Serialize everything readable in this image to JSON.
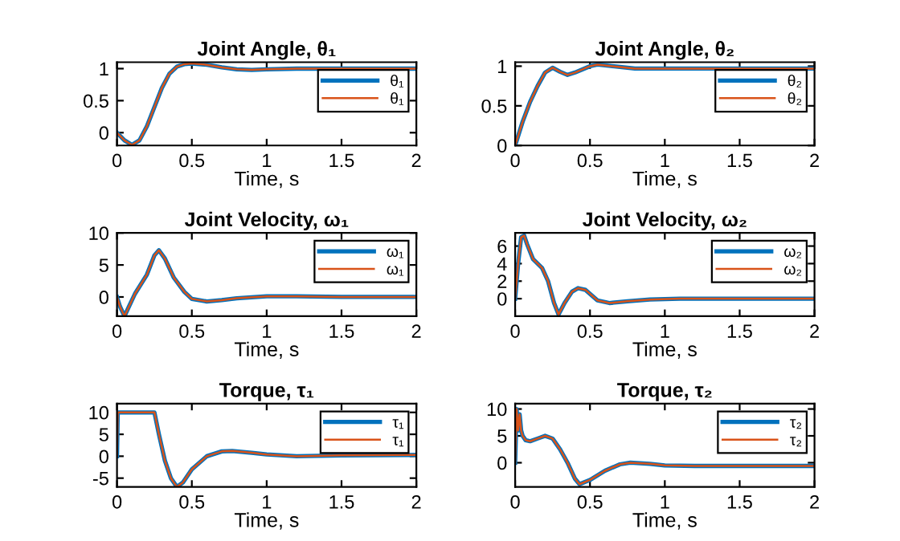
{
  "chart_data": [
    {
      "type": "line",
      "title": "Joint Angle, θ₁",
      "xlabel": "Time, s",
      "xlim": [
        0,
        2
      ],
      "xticks": [
        0,
        0.5,
        1,
        1.5,
        2
      ],
      "ylim": [
        -0.2,
        1.1
      ],
      "yticks": [
        0,
        0.5,
        1
      ],
      "legend": "top right",
      "x": [
        0,
        0.05,
        0.1,
        0.15,
        0.2,
        0.25,
        0.3,
        0.35,
        0.4,
        0.45,
        0.5,
        0.6,
        0.7,
        0.8,
        0.9,
        1.0,
        1.2,
        1.5,
        2
      ],
      "series": [
        {
          "name": "θ₁",
          "color": "#0072bd",
          "values": [
            0,
            -0.12,
            -0.19,
            -0.12,
            0.1,
            0.4,
            0.7,
            0.92,
            1.03,
            1.07,
            1.08,
            1.06,
            1.02,
            0.99,
            0.98,
            0.99,
            1.0,
            1.0,
            1.0
          ]
        },
        {
          "name": "θ₁",
          "color": "#d95319",
          "values": [
            0,
            -0.12,
            -0.19,
            -0.12,
            0.1,
            0.4,
            0.7,
            0.92,
            1.03,
            1.07,
            1.08,
            1.06,
            1.02,
            0.99,
            0.98,
            0.99,
            1.0,
            1.0,
            1.0
          ]
        }
      ]
    },
    {
      "type": "line",
      "title": "Joint Angle, θ₂",
      "xlabel": "Time, s",
      "xlim": [
        0,
        2
      ],
      "xticks": [
        0,
        0.5,
        1,
        1.5,
        2
      ],
      "ylim": [
        0,
        1.05
      ],
      "yticks": [
        0,
        0.5,
        1
      ],
      "legend": "top right",
      "x": [
        0,
        0.05,
        0.1,
        0.15,
        0.2,
        0.25,
        0.3,
        0.35,
        0.4,
        0.5,
        0.55,
        0.6,
        0.7,
        0.8,
        1.0,
        1.5,
        2
      ],
      "series": [
        {
          "name": "θ₂",
          "color": "#0072bd",
          "values": [
            0,
            0.3,
            0.55,
            0.75,
            0.92,
            0.98,
            0.93,
            0.89,
            0.92,
            1.0,
            1.02,
            1.01,
            0.99,
            0.97,
            0.97,
            0.97,
            0.97
          ]
        },
        {
          "name": "θ₂",
          "color": "#d95319",
          "values": [
            0,
            0.3,
            0.55,
            0.75,
            0.92,
            0.98,
            0.93,
            0.89,
            0.92,
            1.0,
            1.02,
            1.01,
            0.99,
            0.97,
            0.97,
            0.97,
            0.97
          ]
        }
      ]
    },
    {
      "type": "line",
      "title": "Joint Velocity, ω₁",
      "xlabel": "Time, s",
      "xlim": [
        0,
        2
      ],
      "xticks": [
        0,
        0.5,
        1,
        1.5,
        2
      ],
      "ylim": [
        -3,
        10
      ],
      "yticks": [
        0,
        5,
        10
      ],
      "legend": "top right",
      "x": [
        0,
        0.02,
        0.05,
        0.08,
        0.12,
        0.2,
        0.25,
        0.28,
        0.32,
        0.38,
        0.45,
        0.5,
        0.6,
        0.7,
        0.8,
        1.0,
        1.2,
        1.5,
        2
      ],
      "series": [
        {
          "name": "ω₁",
          "color": "#0072bd",
          "values": [
            0,
            -1.5,
            -3,
            -1.5,
            0.5,
            3.5,
            6.5,
            7.3,
            6,
            3,
            0.8,
            -0.3,
            -0.7,
            -0.5,
            -0.2,
            0.1,
            0.1,
            0,
            0
          ]
        },
        {
          "name": "ω₁",
          "color": "#d95319",
          "values": [
            0,
            -1.5,
            -3,
            -1.5,
            0.5,
            3.5,
            6.5,
            7.3,
            6,
            3,
            0.8,
            -0.3,
            -0.7,
            -0.5,
            -0.2,
            0.1,
            0.1,
            0,
            0
          ]
        }
      ]
    },
    {
      "type": "line",
      "title": "Joint Velocity, ω₂",
      "xlabel": "Time, s",
      "xlim": [
        0,
        2
      ],
      "xticks": [
        0,
        0.5,
        1,
        1.5,
        2
      ],
      "ylim": [
        -2,
        7.5
      ],
      "yticks": [
        0,
        2,
        4,
        6
      ],
      "legend": "top right",
      "x": [
        0,
        0.02,
        0.04,
        0.06,
        0.08,
        0.12,
        0.18,
        0.22,
        0.26,
        0.29,
        0.33,
        0.38,
        0.42,
        0.47,
        0.55,
        0.63,
        0.75,
        0.9,
        1.1,
        1.5,
        2
      ],
      "series": [
        {
          "name": "ω₂",
          "color": "#0072bd",
          "values": [
            0,
            4,
            7,
            7.2,
            6.2,
            4.5,
            3.5,
            2,
            -0.5,
            -1.8,
            -0.5,
            0.8,
            1.2,
            1,
            -0.2,
            -0.5,
            -0.3,
            -0.1,
            0,
            0,
            0
          ]
        },
        {
          "name": "ω₂",
          "color": "#d95319",
          "values": [
            0,
            4,
            7,
            7.2,
            6.2,
            4.5,
            3.5,
            2,
            -0.5,
            -1.8,
            -0.5,
            0.8,
            1.2,
            1,
            -0.2,
            -0.5,
            -0.3,
            -0.1,
            0,
            0,
            0
          ]
        }
      ]
    },
    {
      "type": "line",
      "title": "Torque, τ₁",
      "xlabel": "Time, s",
      "xlim": [
        0,
        2
      ],
      "xticks": [
        0,
        0.5,
        1,
        1.5,
        2
      ],
      "ylim": [
        -7,
        12
      ],
      "yticks": [
        -5,
        0,
        5,
        10
      ],
      "legend": "top right",
      "x": [
        0,
        0.005,
        0.25,
        0.28,
        0.32,
        0.36,
        0.4,
        0.44,
        0.5,
        0.6,
        0.7,
        0.77,
        0.9,
        1.0,
        1.2,
        1.5,
        2
      ],
      "series": [
        {
          "name": "τ₁",
          "color": "#0072bd",
          "values": [
            0,
            10,
            10,
            5,
            -1,
            -5,
            -7,
            -6,
            -3,
            0,
            1.1,
            1.2,
            0.8,
            0.4,
            0,
            0.2,
            0.3
          ]
        },
        {
          "name": "τ₁",
          "color": "#d95319",
          "values": [
            0,
            10,
            10,
            5,
            -1,
            -5,
            -7,
            -6,
            -3,
            0,
            1.1,
            1.2,
            0.8,
            0.4,
            0,
            0.2,
            0.3
          ]
        }
      ]
    },
    {
      "type": "line",
      "title": "Torque, τ₂",
      "xlabel": "Time, s",
      "xlim": [
        0,
        2
      ],
      "xticks": [
        0,
        0.5,
        1,
        1.5,
        2
      ],
      "ylim": [
        -4.5,
        11
      ],
      "yticks": [
        0,
        5,
        10
      ],
      "legend": "top right",
      "x": [
        0,
        0.01,
        0.02,
        0.03,
        0.04,
        0.05,
        0.07,
        0.1,
        0.15,
        0.2,
        0.25,
        0.3,
        0.35,
        0.4,
        0.43,
        0.5,
        0.6,
        0.7,
        0.77,
        0.9,
        1.0,
        1.2,
        1.5,
        2
      ],
      "series": [
        {
          "name": "τ₂",
          "color": "#0072bd",
          "values": [
            0,
            10,
            6,
            9,
            6,
            5,
            4.2,
            4,
            4.5,
            5,
            4.5,
            2.5,
            0,
            -3,
            -4,
            -3.2,
            -1.5,
            -0.3,
            0,
            -0.2,
            -0.5,
            -0.6,
            -0.6,
            -0.6
          ]
        },
        {
          "name": "τ₂",
          "color": "#d95319",
          "values": [
            0,
            10,
            6,
            9,
            6,
            5,
            4.2,
            4,
            4.5,
            5,
            4.5,
            2.5,
            0,
            -3,
            -4,
            -3.2,
            -1.5,
            -0.3,
            0,
            -0.2,
            -0.5,
            -0.6,
            -0.6,
            -0.6
          ]
        }
      ]
    }
  ]
}
